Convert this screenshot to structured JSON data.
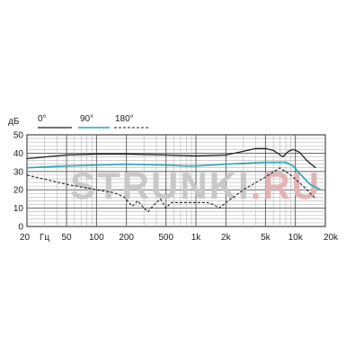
{
  "chart_data": {
    "type": "line",
    "ylabel": "дБ",
    "x_unit_label": "Гц",
    "xscale": "log",
    "xlim": [
      20,
      20000
    ],
    "ylim": [
      0,
      50
    ],
    "grid": true,
    "legend_position": "top-left",
    "y_ticks": [
      {
        "value": 0,
        "label": "0"
      },
      {
        "value": 10,
        "label": "10"
      },
      {
        "value": 20,
        "label": "20"
      },
      {
        "value": 30,
        "label": "30"
      },
      {
        "value": 40,
        "label": "40"
      },
      {
        "value": 50,
        "label": "50"
      }
    ],
    "x_ticks": [
      {
        "value": 20,
        "label": "20"
      },
      {
        "value": 50,
        "label": "50"
      },
      {
        "value": 100,
        "label": "100"
      },
      {
        "value": 200,
        "label": "200"
      },
      {
        "value": 500,
        "label": "500"
      },
      {
        "value": 1000,
        "label": "1k"
      },
      {
        "value": 2000,
        "label": "2k"
      },
      {
        "value": 5000,
        "label": "5k"
      },
      {
        "value": 10000,
        "label": "10k"
      },
      {
        "value": 20000,
        "label": "20k"
      }
    ],
    "series": [
      {
        "name": "0°",
        "color": "#222222",
        "dash": "solid",
        "points": [
          [
            20,
            37
          ],
          [
            50,
            39
          ],
          [
            100,
            39.5
          ],
          [
            200,
            39.5
          ],
          [
            500,
            39
          ],
          [
            1000,
            38.5
          ],
          [
            2000,
            39
          ],
          [
            3000,
            41
          ],
          [
            4000,
            42.5
          ],
          [
            5000,
            42.5
          ],
          [
            6000,
            41.5
          ],
          [
            7500,
            38
          ],
          [
            8500,
            41
          ],
          [
            9500,
            42
          ],
          [
            11000,
            40.5
          ],
          [
            13000,
            36
          ],
          [
            16000,
            32
          ]
        ]
      },
      {
        "name": "90°",
        "color": "#2aa5b4",
        "dash": "solid",
        "points": [
          [
            20,
            32
          ],
          [
            50,
            33
          ],
          [
            100,
            33.5
          ],
          [
            200,
            34
          ],
          [
            500,
            33.5
          ],
          [
            800,
            33
          ],
          [
            1000,
            33
          ],
          [
            2000,
            34
          ],
          [
            5000,
            35
          ],
          [
            8000,
            35
          ],
          [
            9500,
            33
          ],
          [
            11000,
            29
          ],
          [
            14000,
            23
          ],
          [
            18000,
            20
          ]
        ]
      },
      {
        "name": "180°",
        "color": "#222222",
        "dash": "dashed",
        "points": [
          [
            20,
            28
          ],
          [
            50,
            23
          ],
          [
            100,
            20
          ],
          [
            150,
            18.5
          ],
          [
            190,
            16
          ],
          [
            230,
            11
          ],
          [
            260,
            14
          ],
          [
            300,
            10
          ],
          [
            330,
            8
          ],
          [
            380,
            12
          ],
          [
            440,
            15
          ],
          [
            500,
            10
          ],
          [
            560,
            13
          ],
          [
            700,
            13
          ],
          [
            1000,
            13
          ],
          [
            1300,
            13
          ],
          [
            1500,
            12
          ],
          [
            1700,
            10
          ],
          [
            2000,
            13
          ],
          [
            3000,
            20
          ],
          [
            5000,
            27
          ],
          [
            7000,
            32
          ],
          [
            9000,
            28
          ],
          [
            12000,
            22
          ],
          [
            16000,
            15
          ]
        ]
      }
    ]
  },
  "watermark": {
    "text_main": "STRUNKI",
    "text_suffix": ".RU",
    "color_main": "#c8c8c8",
    "color_suffix": "#e3b3b3"
  }
}
